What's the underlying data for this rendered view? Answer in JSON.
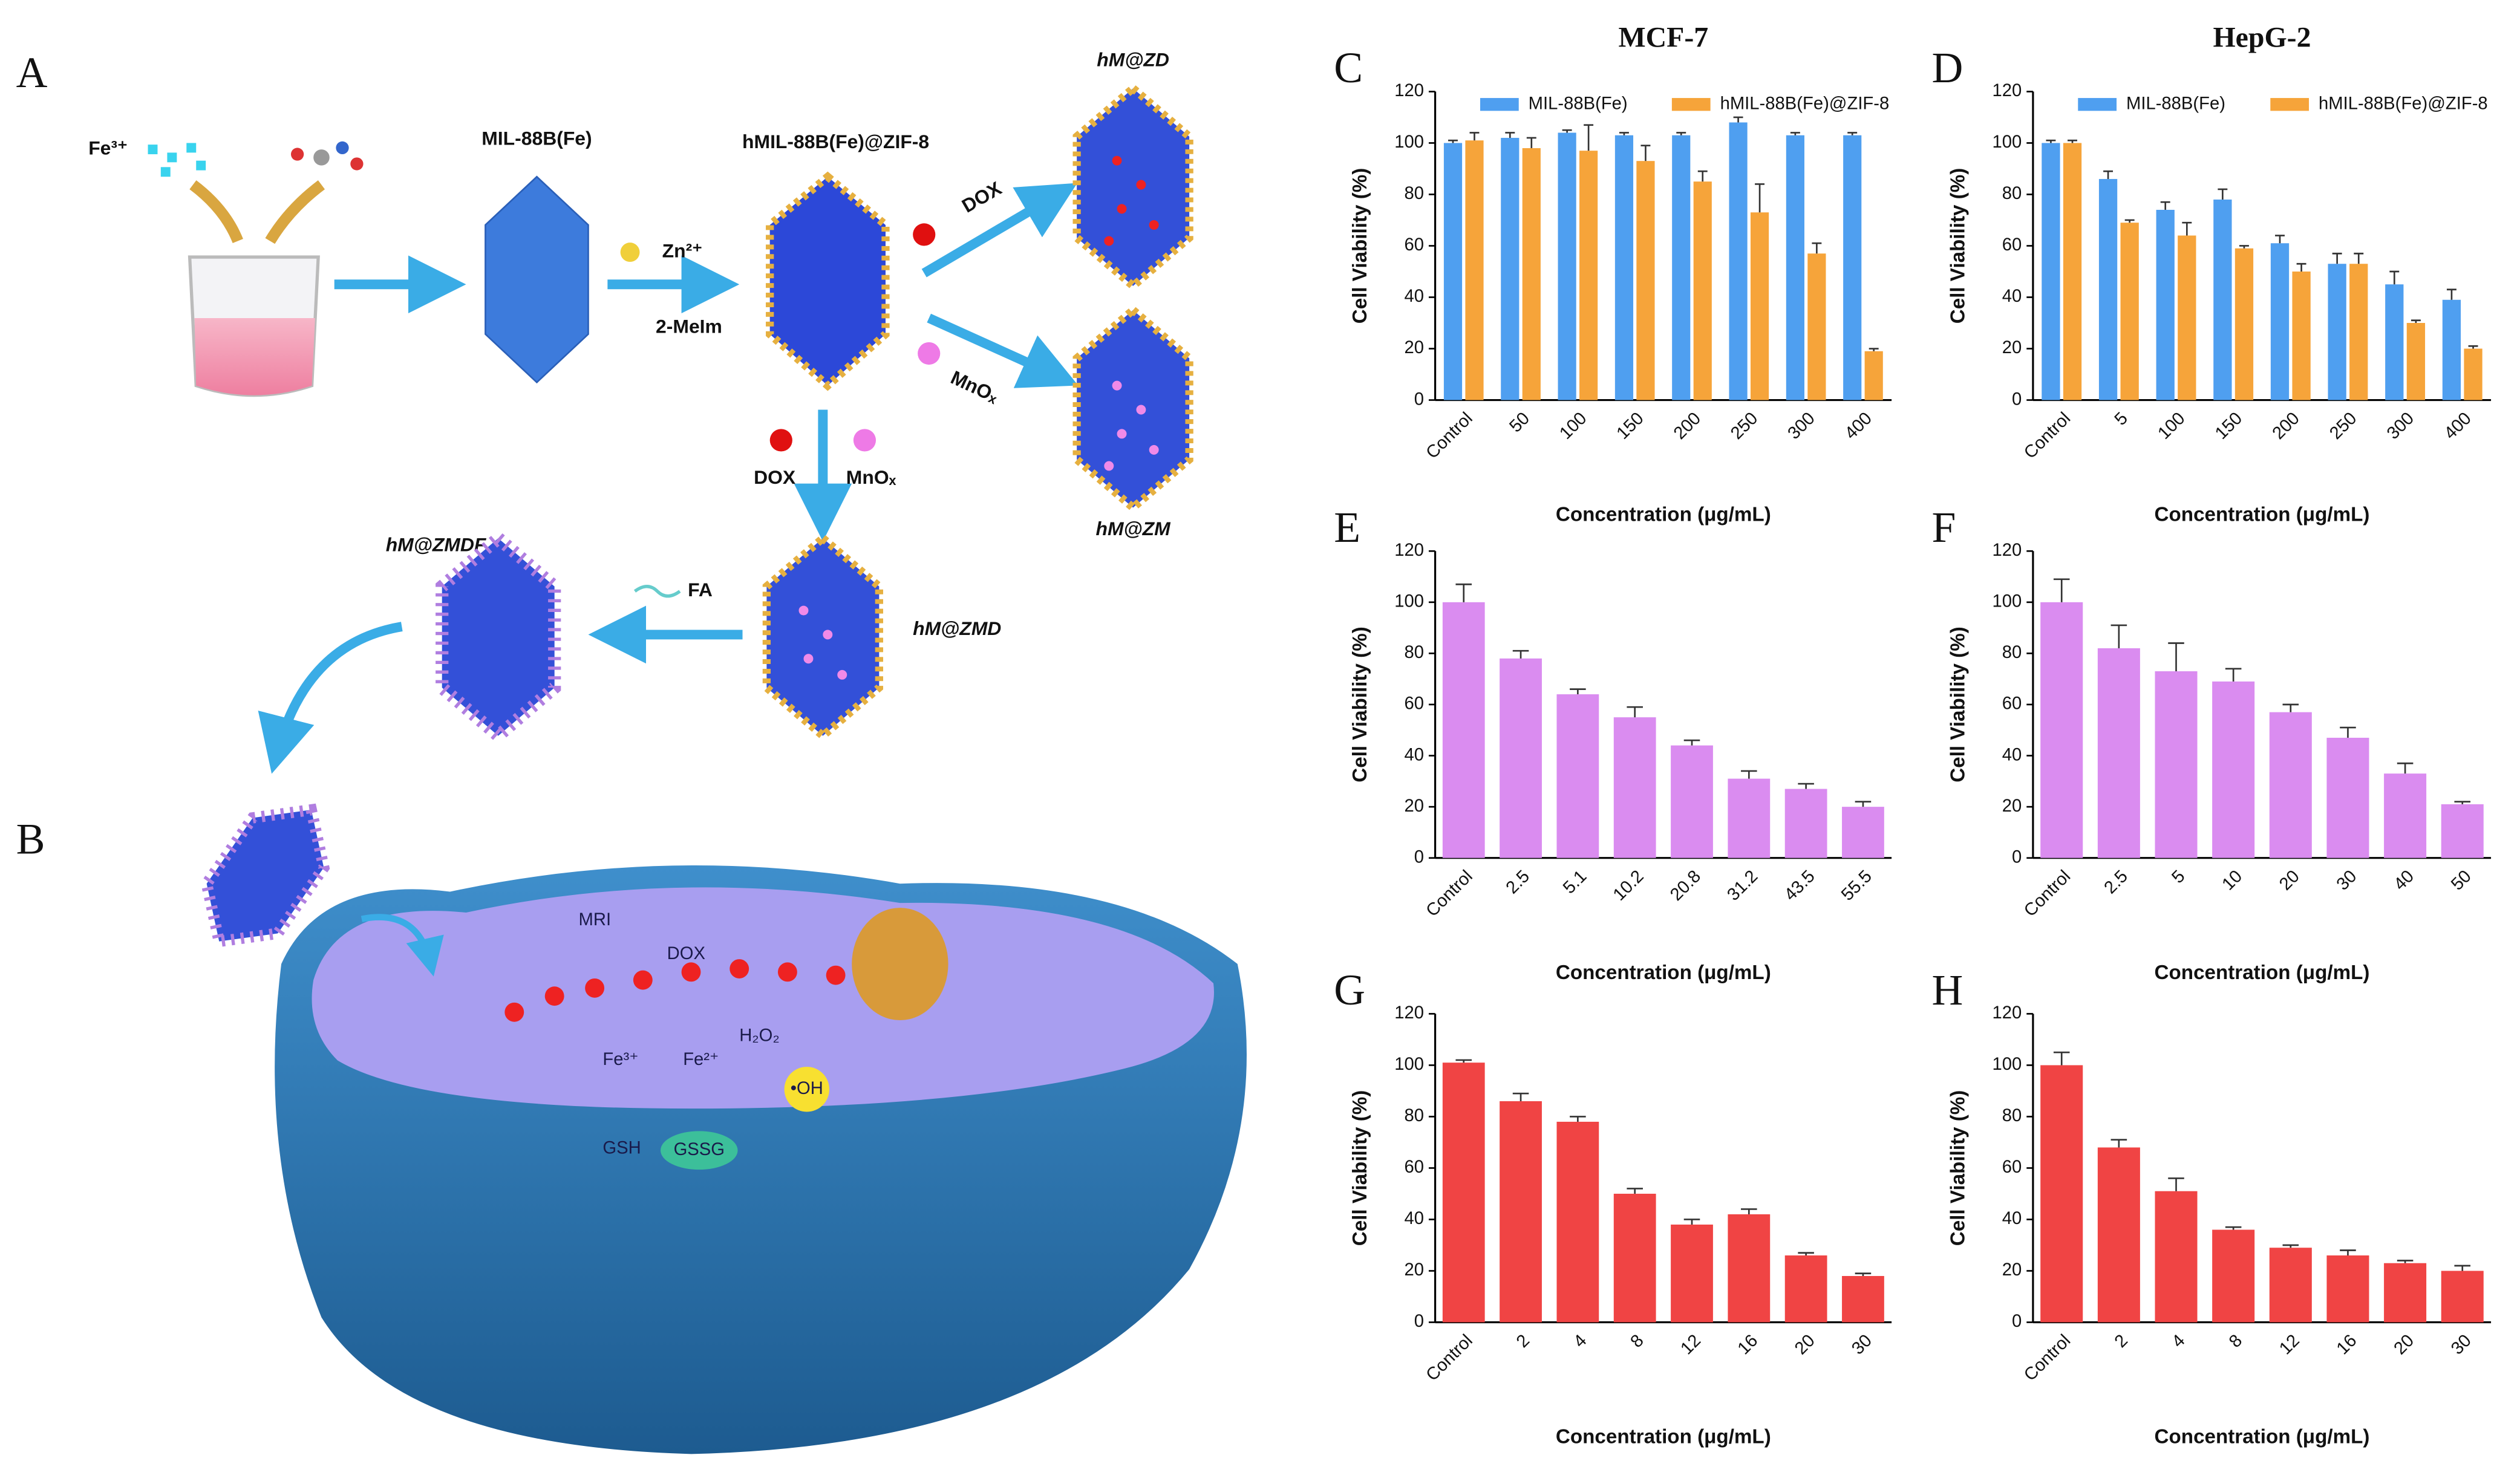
{
  "schematic": {
    "panel_a": "A",
    "panel_b": "B",
    "fe3": "Fe³⁺",
    "mil": "MIL-88B(Fe)",
    "hmil": "hMIL-88B(Fe)@ZIF-8",
    "zn": "Zn²⁺",
    "meim": "2-MeIm",
    "dox1": "DOX",
    "mnox1": "MnOₓ",
    "hmzd": "hM@ZD",
    "hmzm": "hM@ZM",
    "dox2": "DOX",
    "mnox2": "MnOₓ",
    "hmzmd": "hM@ZMD",
    "fa": "FA",
    "hmzmdf": "hM@ZMDF",
    "mri": "MRI",
    "dox3": "DOX",
    "h2o2": "H₂O₂",
    "fe3b": "Fe³⁺",
    "fe2": "Fe²⁺",
    "oh": "•OH",
    "gsh": "GSH",
    "gssg": "GSSG"
  },
  "chart_data": [
    {
      "type": "bar",
      "panel": "C",
      "title": "MCF-7",
      "x_label": "Concentration (μg/mL)",
      "y_label": "Cell Viability (%)",
      "categories": [
        "Control",
        "50",
        "100",
        "150",
        "200",
        "250",
        "300",
        "400"
      ],
      "series": [
        {
          "name": "MIL-88B(Fe)",
          "color": "#4f9ff0",
          "values": [
            100,
            102,
            104,
            103,
            103,
            108,
            103,
            103
          ],
          "errors": [
            1,
            2,
            1,
            1,
            1,
            2,
            1,
            1
          ]
        },
        {
          "name": "hMIL-88B(Fe)@ZIF-8",
          "color": "#f6a43a",
          "values": [
            101,
            98,
            97,
            93,
            85,
            73,
            57,
            19
          ],
          "errors": [
            3,
            4,
            10,
            6,
            4,
            11,
            4,
            1
          ]
        }
      ],
      "ylim": [
        0,
        120
      ],
      "yticks": [
        0,
        20,
        40,
        60,
        80,
        100,
        120
      ],
      "legend": "top"
    },
    {
      "type": "bar",
      "panel": "D",
      "title": "HepG-2",
      "x_label": "Concentration (μg/mL)",
      "y_label": "Cell Viability (%)",
      "categories": [
        "Control",
        "5",
        "100",
        "150",
        "200",
        "250",
        "300",
        "400"
      ],
      "series": [
        {
          "name": "MIL-88B(Fe)",
          "color": "#4f9ff0",
          "values": [
            100,
            86,
            74,
            78,
            61,
            53,
            45,
            39
          ],
          "errors": [
            1,
            3,
            3,
            4,
            3,
            4,
            5,
            4
          ]
        },
        {
          "name": "hMIL-88B(Fe)@ZIF-8",
          "color": "#f6a43a",
          "values": [
            100,
            69,
            64,
            59,
            50,
            53,
            30,
            20
          ],
          "errors": [
            1,
            1,
            5,
            1,
            3,
            4,
            1,
            1
          ]
        }
      ],
      "ylim": [
        0,
        120
      ],
      "yticks": [
        0,
        20,
        40,
        60,
        80,
        100,
        120
      ],
      "legend": "top"
    },
    {
      "type": "bar",
      "panel": "E",
      "x_label": "Concentration (μg/mL)",
      "y_label": "Cell Viability (%)",
      "categories": [
        "Control",
        "2.5",
        "5.1",
        "10.2",
        "20.8",
        "31.2",
        "43.5",
        "55.5"
      ],
      "values": [
        100,
        78,
        64,
        55,
        44,
        31,
        27,
        20
      ],
      "errors": [
        7,
        3,
        2,
        4,
        2,
        3,
        2,
        2
      ],
      "color": "#da8cf0",
      "ylim": [
        0,
        120
      ],
      "yticks": [
        0,
        20,
        40,
        60,
        80,
        100,
        120
      ]
    },
    {
      "type": "bar",
      "panel": "F",
      "x_label": "Concentration (μg/mL)",
      "y_label": "Cell Viability (%)",
      "categories": [
        "Control",
        "2.5",
        "5",
        "10",
        "20",
        "30",
        "40",
        "50"
      ],
      "values": [
        100,
        82,
        73,
        69,
        57,
        47,
        33,
        21
      ],
      "errors": [
        9,
        9,
        11,
        5,
        3,
        4,
        4,
        1
      ],
      "color": "#da8cf0",
      "ylim": [
        0,
        120
      ],
      "yticks": [
        0,
        20,
        40,
        60,
        80,
        100,
        120
      ]
    },
    {
      "type": "bar",
      "panel": "G",
      "x_label": "Concentration (μg/mL)",
      "y_label": "Cell Viability (%)",
      "categories": [
        "Control",
        "2",
        "4",
        "8",
        "12",
        "16",
        "20",
        "30"
      ],
      "values": [
        101,
        86,
        78,
        50,
        38,
        42,
        26,
        18
      ],
      "errors": [
        1,
        3,
        2,
        2,
        2,
        2,
        1,
        1
      ],
      "color": "#f04444",
      "ylim": [
        0,
        120
      ],
      "yticks": [
        0,
        20,
        40,
        60,
        80,
        100,
        120
      ]
    },
    {
      "type": "bar",
      "panel": "H",
      "x_label": "Concentration (μg/mL)",
      "y_label": "Cell Viability (%)",
      "categories": [
        "Control",
        "2",
        "4",
        "8",
        "12",
        "16",
        "20",
        "30"
      ],
      "values": [
        100,
        68,
        51,
        36,
        29,
        26,
        23,
        20
      ],
      "errors": [
        5,
        3,
        5,
        1,
        1,
        2,
        1,
        2
      ],
      "color": "#f04444",
      "ylim": [
        0,
        120
      ],
      "yticks": [
        0,
        20,
        40,
        60,
        80,
        100,
        120
      ]
    }
  ]
}
